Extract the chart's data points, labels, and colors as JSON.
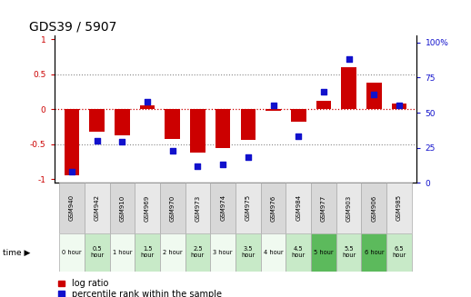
{
  "title": "GDS39 / 5907",
  "samples": [
    "GSM940",
    "GSM942",
    "GSM910",
    "GSM969",
    "GSM970",
    "GSM973",
    "GSM974",
    "GSM975",
    "GSM976",
    "GSM984",
    "GSM977",
    "GSM903",
    "GSM906",
    "GSM985"
  ],
  "time_labels": [
    "0 hour",
    "0.5\nhour",
    "1 hour",
    "1.5\nhour",
    "2 hour",
    "2.5\nhour",
    "3 hour",
    "3.5\nhour",
    "4 hour",
    "4.5\nhour",
    "5 hour",
    "5.5\nhour",
    "6 hour",
    "6.5\nhour"
  ],
  "log_ratio": [
    -0.95,
    -0.32,
    -0.38,
    0.06,
    -0.42,
    -0.62,
    -0.55,
    -0.44,
    -0.03,
    -0.18,
    0.12,
    0.6,
    0.38,
    0.08
  ],
  "percentile": [
    8,
    30,
    29,
    58,
    23,
    12,
    13,
    18,
    55,
    33,
    65,
    88,
    63,
    55
  ],
  "time_colors": [
    "#f0faf0",
    "#c8eac8",
    "#f0faf0",
    "#c8eac8",
    "#f0faf0",
    "#c8eac8",
    "#f0faf0",
    "#c8eac8",
    "#f0faf0",
    "#c8eac8",
    "#5cba5c",
    "#c8eac8",
    "#5cba5c",
    "#c8eac8"
  ],
  "sample_row_colors": [
    "#d0d0d0",
    "#e8e8e8",
    "#d0d0d0",
    "#e8e8e8",
    "#d0d0d0",
    "#e8e8e8",
    "#d0d0d0",
    "#e8e8e8",
    "#d0d0d0",
    "#e8e8e8",
    "#d0d0d0",
    "#e8e8e8",
    "#d0d0d0",
    "#e8e8e8"
  ],
  "bar_color": "#cc0000",
  "dot_color": "#1111cc",
  "ylim_left": [
    -1.05,
    1.05
  ],
  "ylim_right": [
    0,
    105
  ],
  "yticks_left": [
    -1,
    -0.5,
    0,
    0.5,
    1
  ],
  "yticks_right": [
    0,
    25,
    50,
    75,
    100
  ],
  "background_color": "#ffffff",
  "title_fontsize": 10,
  "tick_fontsize": 6.5,
  "legend_fontsize": 7
}
